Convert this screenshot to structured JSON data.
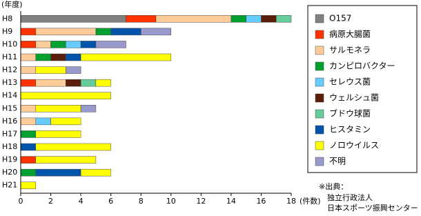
{
  "chart_data": {
    "type": "bar",
    "orientation": "horizontal",
    "stacked": true,
    "y_label": "(年度)",
    "x_label": "(件数)",
    "categories": [
      "H8",
      "H9",
      "H10",
      "H11",
      "H12",
      "H13",
      "H14",
      "H15",
      "H16",
      "H17",
      "H18",
      "H19",
      "H20",
      "H21"
    ],
    "series": [
      {
        "name": "O157",
        "color": "#808080",
        "values": [
          7,
          0,
          0,
          0,
          0,
          0,
          0,
          0,
          0,
          0,
          0,
          0,
          0,
          0
        ]
      },
      {
        "name": "病原大腸菌",
        "color": "#ff3300",
        "values": [
          2,
          1,
          1,
          0,
          0,
          1,
          0,
          0,
          0,
          0,
          0,
          1,
          0,
          0
        ]
      },
      {
        "name": "サルモネラ",
        "color": "#ffcc99",
        "values": [
          5,
          4,
          1,
          1,
          1,
          2,
          0,
          1,
          1,
          0,
          0,
          0,
          0,
          0
        ]
      },
      {
        "name": "カンピロバクター",
        "color": "#00a030",
        "values": [
          1,
          1,
          1,
          1,
          0,
          0,
          0,
          0,
          0,
          1,
          0,
          0,
          1,
          0
        ]
      },
      {
        "name": "セレウス菌",
        "color": "#66ccff",
        "values": [
          1,
          0,
          1,
          0,
          0,
          0,
          0,
          0,
          1,
          0,
          0,
          0,
          0,
          0
        ]
      },
      {
        "name": "ウェルシュ菌",
        "color": "#5a1e0a",
        "values": [
          1,
          0,
          0,
          1,
          0,
          1,
          0,
          0,
          0,
          0,
          0,
          0,
          0,
          0
        ]
      },
      {
        "name": "ブドウ球菌",
        "color": "#66cc99",
        "values": [
          1,
          0,
          0,
          0,
          0,
          1,
          0,
          0,
          0,
          0,
          0,
          0,
          0,
          0
        ]
      },
      {
        "name": "ヒスタミン",
        "color": "#0055aa",
        "values": [
          0,
          2,
          1,
          1,
          0,
          0,
          0,
          0,
          0,
          0,
          1,
          0,
          3,
          0
        ]
      },
      {
        "name": "ノロウイルス",
        "color": "#ffff00",
        "values": [
          0,
          0,
          0,
          6,
          2,
          1,
          6,
          3,
          2,
          3,
          5,
          4,
          2,
          1
        ]
      },
      {
        "name": "不明",
        "color": "#9999cc",
        "values": [
          0,
          2,
          2,
          0,
          1,
          0,
          0,
          1,
          0,
          0,
          0,
          0,
          0,
          0
        ]
      }
    ],
    "xlim": [
      0,
      18
    ],
    "xticks": [
      0,
      2,
      4,
      6,
      8,
      10,
      12,
      14,
      16,
      18
    ],
    "note": [
      "※出典：",
      "独立行政法人",
      "日本スポーツ振興センター"
    ]
  }
}
